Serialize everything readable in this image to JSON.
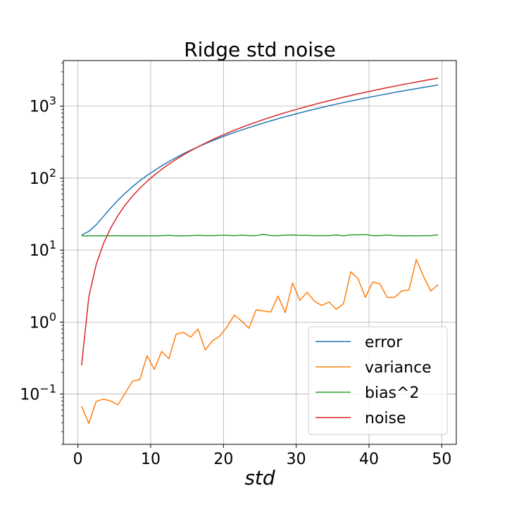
{
  "chart_data": {
    "type": "line",
    "title": "Ridge std noise",
    "xlabel": "std",
    "ylabel": "",
    "xlim": [
      -2.0,
      52.0
    ],
    "ylim": [
      0.02,
      4300
    ],
    "yscale": "log",
    "grid": true,
    "legend_position": "lower-right",
    "xticks": [
      0,
      10,
      20,
      30,
      40,
      50
    ],
    "yticks": [
      {
        "value": 0.1,
        "base": "10",
        "exp": "−1"
      },
      {
        "value": 1,
        "base": "10",
        "exp": "0"
      },
      {
        "value": 10,
        "base": "10",
        "exp": "1"
      },
      {
        "value": 100,
        "base": "10",
        "exp": "2"
      },
      {
        "value": 1000,
        "base": "10",
        "exp": "3"
      }
    ],
    "x": [
      0.5,
      1.5,
      2.5,
      3.5,
      4.5,
      5.5,
      6.5,
      7.5,
      8.5,
      9.5,
      10.5,
      11.5,
      12.5,
      13.5,
      14.5,
      15.5,
      16.5,
      17.5,
      18.5,
      19.5,
      20.5,
      21.5,
      22.5,
      23.5,
      24.5,
      25.5,
      26.5,
      27.5,
      28.5,
      29.5,
      30.5,
      31.5,
      32.5,
      33.5,
      34.5,
      35.5,
      36.5,
      37.5,
      38.5,
      39.5,
      40.5,
      41.5,
      42.5,
      43.5,
      44.5,
      45.5,
      46.5,
      47.5,
      48.5,
      49.5
    ],
    "series": [
      {
        "name": "error",
        "color": "#1f77b4",
        "values": [
          16.2,
          18.2,
          22.4,
          29.3,
          38.3,
          49.3,
          61.7,
          76,
          92,
          109,
          127,
          148,
          170,
          193,
          218,
          244,
          272,
          301,
          331,
          363,
          397,
          431,
          467,
          504,
          543,
          583,
          625,
          669,
          713,
          759,
          807,
          856,
          906,
          958,
          1011,
          1065,
          1121,
          1178,
          1236,
          1296,
          1357,
          1420,
          1484,
          1549,
          1615,
          1683,
          1752,
          1823,
          1895,
          1970
        ]
      },
      {
        "name": "variance",
        "color": "#ff7f0e",
        "values": [
          0.068,
          0.039,
          0.079,
          0.085,
          0.08,
          0.071,
          0.103,
          0.151,
          0.158,
          0.34,
          0.22,
          0.39,
          0.31,
          0.68,
          0.72,
          0.62,
          0.8,
          0.41,
          0.55,
          0.64,
          0.86,
          1.25,
          1.03,
          0.82,
          1.48,
          1.42,
          1.38,
          2.3,
          1.35,
          3.5,
          2.0,
          2.6,
          1.95,
          1.7,
          1.9,
          1.5,
          1.8,
          5.0,
          4.0,
          2.2,
          3.6,
          3.4,
          2.2,
          2.2,
          2.7,
          2.8,
          7.4,
          4.3,
          2.7,
          3.3
        ]
      },
      {
        "name": "bias^2",
        "color": "#2ca02c",
        "values": [
          15.8,
          15.8,
          15.8,
          15.8,
          15.8,
          15.9,
          15.8,
          15.8,
          15.8,
          15.8,
          15.8,
          15.9,
          16.0,
          15.8,
          15.8,
          15.9,
          16.0,
          15.9,
          15.9,
          16.0,
          16.0,
          15.9,
          16.1,
          15.9,
          15.9,
          16.5,
          15.9,
          15.9,
          16.1,
          16.2,
          16.0,
          16.0,
          15.9,
          15.9,
          15.9,
          16.2,
          15.8,
          16.3,
          16.3,
          16.4,
          15.9,
          15.9,
          16.2,
          15.9,
          15.8,
          15.9,
          15.8,
          15.9,
          15.9,
          16.3
        ]
      },
      {
        "name": "noise",
        "color": "#d62728",
        "values": [
          0.25,
          2.25,
          6.25,
          12.25,
          20.25,
          30.25,
          42.25,
          56.25,
          72.25,
          90.25,
          110.25,
          132.25,
          156.25,
          182.25,
          210.25,
          240.25,
          272.25,
          306.25,
          342.25,
          380.25,
          420.25,
          462.25,
          506.25,
          552.25,
          600.25,
          650.25,
          702.25,
          756.25,
          812.25,
          870.25,
          930.25,
          992.25,
          1056.25,
          1122.25,
          1190.25,
          1260.25,
          1332.25,
          1406.25,
          1482.25,
          1560.25,
          1640.25,
          1722.25,
          1806.25,
          1892.25,
          1980.25,
          2070.25,
          2162.25,
          2256.25,
          2352.25,
          2450.25
        ]
      }
    ]
  }
}
